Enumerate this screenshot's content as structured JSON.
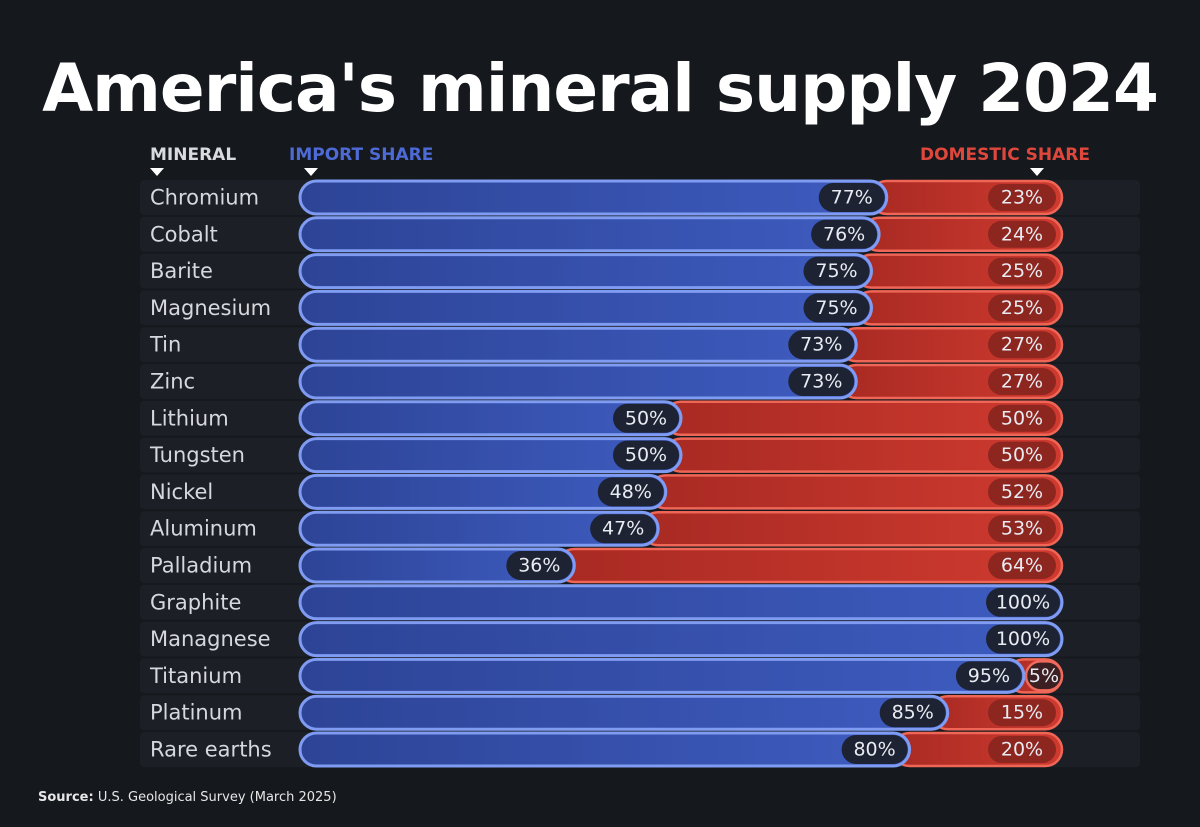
{
  "title": "America's mineral supply 2024",
  "headers": {
    "mineral": "MINERAL",
    "import": "IMPORT SHARE",
    "domestic": "DOMESTIC SHARE"
  },
  "source_label": "Source:",
  "source_text": "U.S. Geological Survey (March 2025)",
  "colors": {
    "import": "#3855b3",
    "domestic": "#c9342b",
    "background": "#15181d"
  },
  "chart_data": {
    "type": "bar",
    "stacked": true,
    "orientation": "horizontal",
    "categories": [
      "Chromium",
      "Cobalt",
      "Barite",
      "Magnesium",
      "Tin",
      "Zinc",
      "Lithium",
      "Tungsten",
      "Nickel",
      "Aluminum",
      "Palladium",
      "Graphite",
      "Managnese",
      "Titanium",
      "Platinum",
      "Rare earths"
    ],
    "series": [
      {
        "name": "IMPORT SHARE",
        "values": [
          77,
          76,
          75,
          75,
          73,
          73,
          50,
          50,
          48,
          47,
          36,
          100,
          100,
          95,
          85,
          80
        ]
      },
      {
        "name": "DOMESTIC SHARE",
        "values": [
          23,
          24,
          25,
          25,
          27,
          27,
          50,
          50,
          52,
          53,
          64,
          0,
          0,
          5,
          15,
          20
        ]
      }
    ],
    "value_suffix": "%",
    "xlim": [
      0,
      100
    ]
  }
}
